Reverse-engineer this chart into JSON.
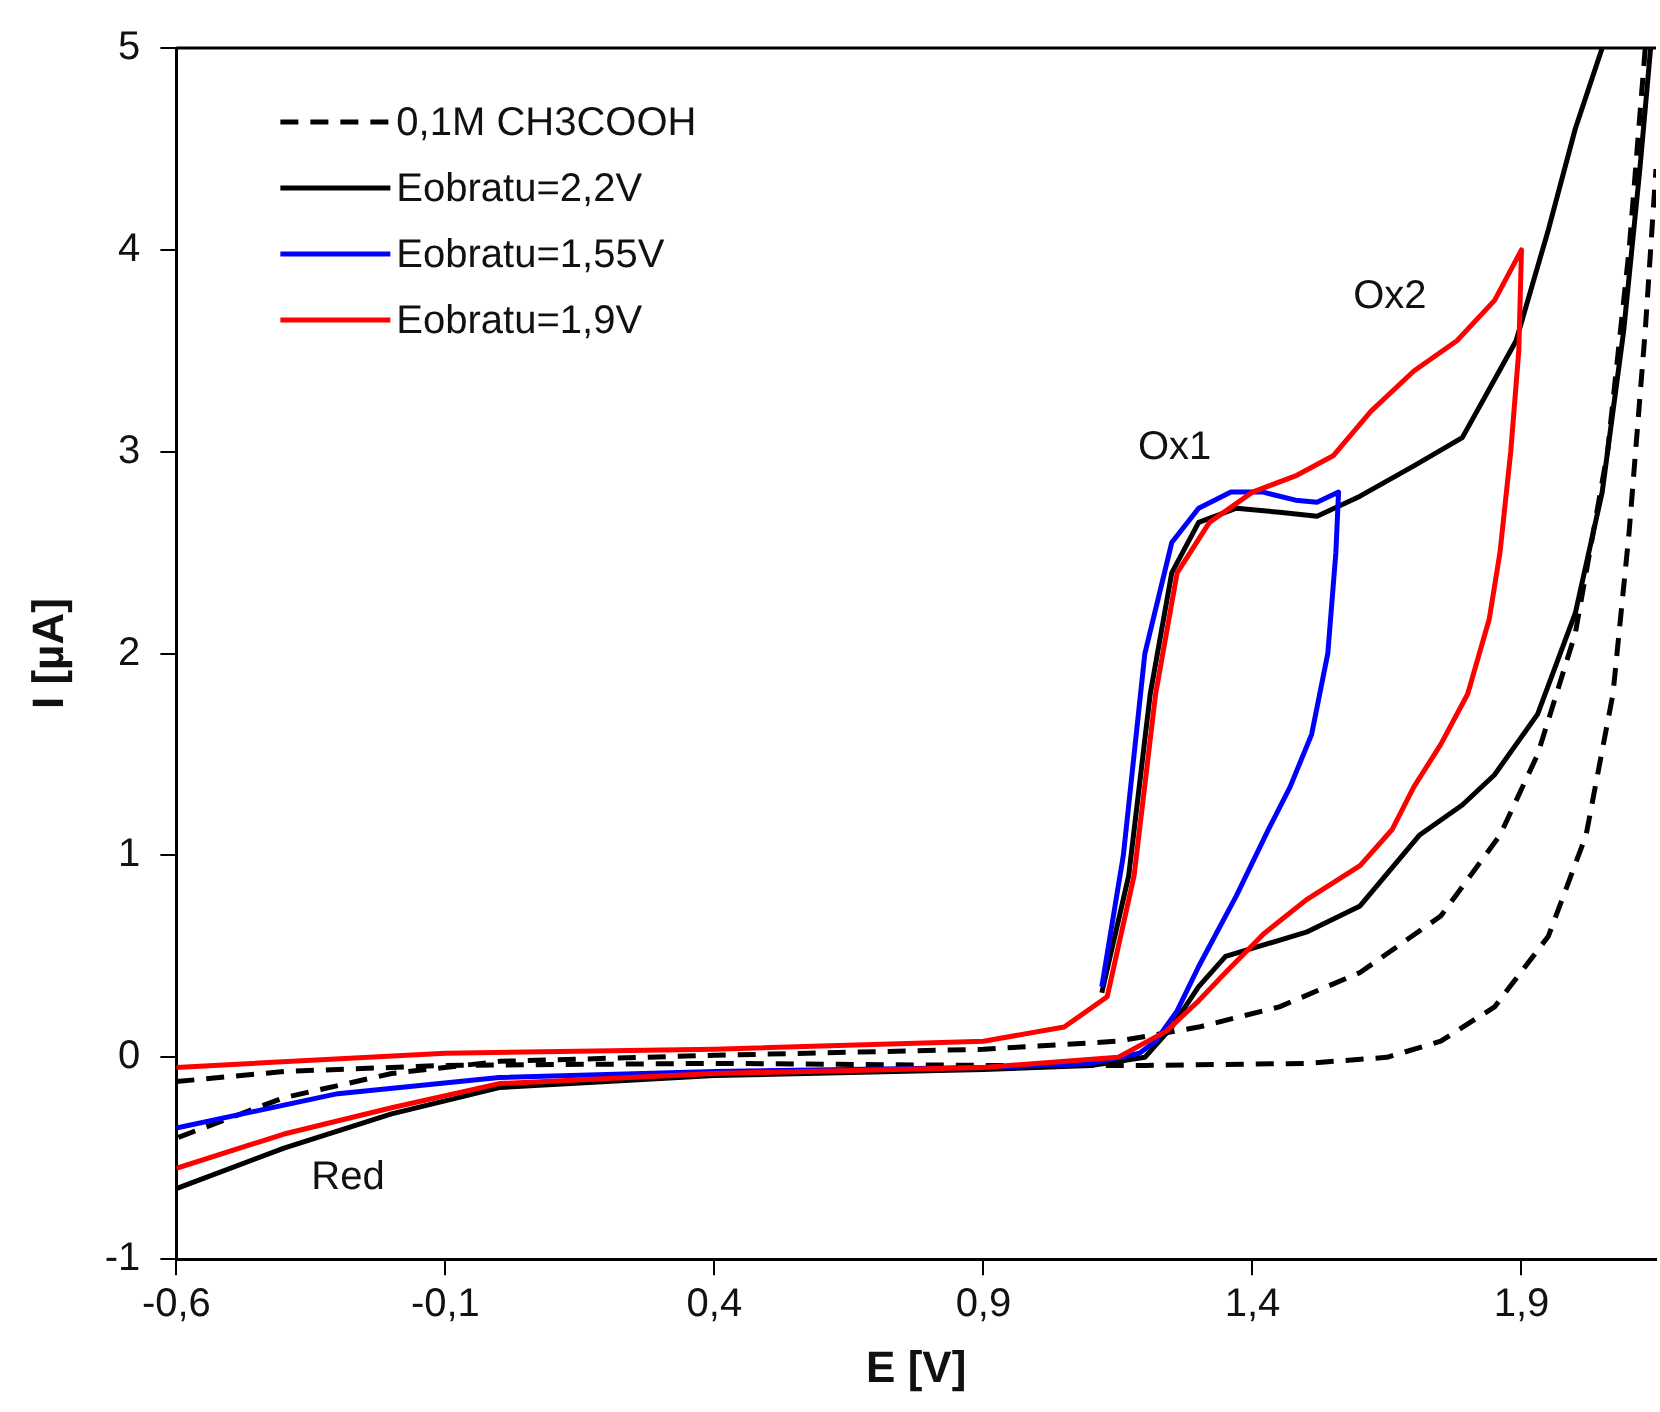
{
  "chart_data": {
    "type": "line",
    "xlabel": "E [V]",
    "ylabel": "I [µA]",
    "xlim": [
      -0.6,
      2.15
    ],
    "xticks": [
      {
        "value": -0.6,
        "label": "-0,6"
      },
      {
        "value": -0.1,
        "label": "-0,1"
      },
      {
        "value": 0.4,
        "label": "0,4"
      },
      {
        "value": 0.9,
        "label": "0,9"
      },
      {
        "value": 1.4,
        "label": "1,4"
      },
      {
        "value": 1.9,
        "label": "1,9"
      }
    ],
    "ylim": [
      -1,
      5
    ],
    "yticks": [
      -1,
      0,
      1,
      2,
      3,
      4,
      5
    ],
    "grid": false,
    "legend": "top left",
    "marker": "none",
    "series": [
      {
        "name": "0,1M CH3COOH",
        "color": "#000000",
        "line_style": "dashed",
        "x": [
          -0.6,
          -0.4,
          -0.1,
          0.4,
          0.9,
          1.2,
          1.5,
          1.65,
          1.75,
          1.85,
          1.95,
          2.02,
          2.07,
          2.1,
          2.13,
          2.15
        ],
        "values": [
          -0.12,
          -0.07,
          -0.04,
          -0.03,
          -0.04,
          -0.04,
          -0.03,
          0.0,
          0.08,
          0.25,
          0.6,
          1.1,
          1.8,
          2.6,
          3.6,
          4.4
        ]
      },
      {
        "color": "#000000",
        "line_style": "dashed",
        "x": [
          2.13,
          2.1,
          2.06,
          2.0,
          1.93,
          1.86,
          1.75,
          1.6,
          1.45,
          1.3,
          1.15,
          0.9,
          0.4,
          0.0,
          -0.2,
          -0.4,
          -0.6
        ],
        "values": [
          5.0,
          4.0,
          3.0,
          2.1,
          1.5,
          1.1,
          0.7,
          0.42,
          0.25,
          0.15,
          0.08,
          0.04,
          0.01,
          -0.02,
          -0.08,
          -0.2,
          -0.4
        ]
      },
      {
        "name": "Eobratu=2,2V",
        "color": "#000000",
        "line_style": "solid",
        "x": [
          1.12,
          1.17,
          1.21,
          1.25,
          1.3,
          1.37,
          1.45,
          1.52,
          1.6,
          1.7,
          1.79,
          1.89,
          1.95,
          2.0,
          2.05
        ],
        "values": [
          0.32,
          0.9,
          1.8,
          2.4,
          2.65,
          2.72,
          2.7,
          2.68,
          2.78,
          2.93,
          3.07,
          3.55,
          4.1,
          4.6,
          5.0
        ]
      },
      {
        "color": "#000000",
        "line_style": "solid",
        "x": [
          2.14,
          2.12,
          2.09,
          2.05,
          2.0,
          1.93,
          1.85,
          1.79,
          1.71,
          1.6,
          1.5,
          1.35,
          1.3,
          1.25,
          1.2,
          1.1,
          0.9,
          0.4,
          0.0,
          -0.2,
          -0.4,
          -0.6
        ],
        "values": [
          5.0,
          4.4,
          3.6,
          2.8,
          2.2,
          1.7,
          1.4,
          1.25,
          1.1,
          0.75,
          0.62,
          0.5,
          0.35,
          0.15,
          0.0,
          -0.04,
          -0.06,
          -0.09,
          -0.15,
          -0.28,
          -0.45,
          -0.65
        ]
      },
      {
        "name": "Eobratu=1,55V",
        "color": "#0000ff",
        "line_style": "solid",
        "x": [
          1.12,
          1.16,
          1.2,
          1.25,
          1.3,
          1.36,
          1.42,
          1.48,
          1.52,
          1.56,
          1.555,
          1.54,
          1.51,
          1.47,
          1.43,
          1.37,
          1.3,
          1.26,
          1.22,
          1.19,
          1.1,
          0.9,
          0.4,
          0.0,
          -0.3,
          -0.6
        ],
        "values": [
          0.35,
          1.0,
          2.0,
          2.55,
          2.72,
          2.8,
          2.8,
          2.76,
          2.75,
          2.8,
          2.5,
          2.0,
          1.6,
          1.34,
          1.13,
          0.8,
          0.45,
          0.23,
          0.08,
          0.02,
          -0.03,
          -0.05,
          -0.07,
          -0.1,
          -0.18,
          -0.35
        ]
      },
      {
        "name": "Eobratu=1,9V",
        "color": "#ff0000",
        "line_style": "solid",
        "x": [
          -0.6,
          -0.1,
          0.4,
          0.9,
          1.05,
          1.13,
          1.18,
          1.22,
          1.26,
          1.32,
          1.4,
          1.48,
          1.55,
          1.62,
          1.7,
          1.78,
          1.85,
          1.9,
          1.895,
          1.88,
          1.86,
          1.84,
          1.8,
          1.75,
          1.7,
          1.66,
          1.6,
          1.5,
          1.42,
          1.35,
          1.3,
          1.24,
          1.15,
          0.9,
          0.4,
          0.0,
          -0.2,
          -0.4,
          -0.6
        ],
        "values": [
          -0.05,
          0.02,
          0.04,
          0.08,
          0.15,
          0.3,
          0.9,
          1.8,
          2.4,
          2.65,
          2.8,
          2.88,
          2.98,
          3.2,
          3.4,
          3.55,
          3.75,
          4.0,
          3.5,
          3.0,
          2.5,
          2.17,
          1.8,
          1.55,
          1.34,
          1.13,
          0.95,
          0.78,
          0.61,
          0.42,
          0.28,
          0.13,
          0.0,
          -0.05,
          -0.08,
          -0.13,
          -0.25,
          -0.38,
          -0.55
        ]
      }
    ],
    "annotations": [
      {
        "text": "Ox1",
        "x": 1.3,
        "y": 2.65
      },
      {
        "text": "Ox2",
        "x": 1.7,
        "y": 3.4
      },
      {
        "text": "Red",
        "x": -0.4,
        "y": -0.38
      }
    ]
  }
}
